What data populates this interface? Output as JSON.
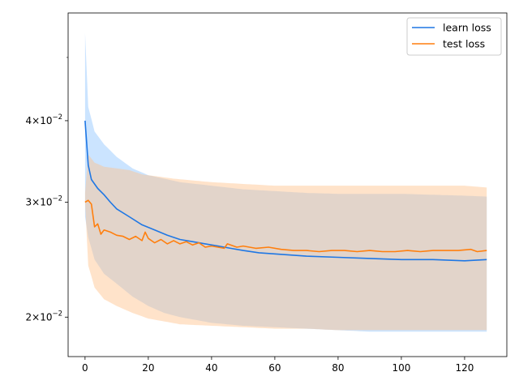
{
  "chart_data": {
    "type": "line",
    "title": "",
    "xlabel": "",
    "ylabel": "",
    "xlim": [
      -5.35,
      133.35
    ],
    "ylim": [
      0.0174,
      0.0585
    ],
    "yscale": "log",
    "grid": false,
    "legend_position": "top-right",
    "x_ticks": [
      0,
      20,
      40,
      60,
      80,
      100,
      120
    ],
    "x_tick_labels": [
      "0",
      "20",
      "40",
      "60",
      "80",
      "100",
      "120"
    ],
    "y_major_ticks": [
      0.02,
      0.03,
      0.04
    ],
    "y_major_tick_labels": [
      {
        "mantissa": "2",
        "base": "10",
        "exponent": "−2"
      },
      {
        "mantissa": "3",
        "base": "10",
        "exponent": "−2"
      },
      {
        "mantissa": "4",
        "base": "10",
        "exponent": "−2"
      }
    ],
    "y_minor_ticks": [
      0.05
    ],
    "series": [
      {
        "name": "learn loss",
        "color": "#1f77e4",
        "band_color": "#8cc4ff",
        "points": [
          [
            0,
            0.04
          ],
          [
            1,
            0.0342
          ],
          [
            2,
            0.0325
          ],
          [
            4,
            0.0315
          ],
          [
            6,
            0.0308
          ],
          [
            8,
            0.03
          ],
          [
            10,
            0.0293
          ],
          [
            14,
            0.0285
          ],
          [
            18,
            0.0277
          ],
          [
            22,
            0.0272
          ],
          [
            26,
            0.0267
          ],
          [
            30,
            0.0263
          ],
          [
            34,
            0.0261
          ],
          [
            38,
            0.0259
          ],
          [
            42,
            0.0257
          ],
          [
            46,
            0.0255
          ],
          [
            50,
            0.0253
          ],
          [
            55,
            0.0251
          ],
          [
            60,
            0.025
          ],
          [
            65,
            0.0249
          ],
          [
            70,
            0.0248
          ],
          [
            80,
            0.0247
          ],
          [
            90,
            0.0246
          ],
          [
            100,
            0.0245
          ],
          [
            110,
            0.0245
          ],
          [
            120,
            0.0244
          ],
          [
            127,
            0.0245
          ]
        ],
        "upper": [
          [
            0,
            0.0545
          ],
          [
            1,
            0.042
          ],
          [
            3,
            0.0385
          ],
          [
            6,
            0.0368
          ],
          [
            10,
            0.0352
          ],
          [
            15,
            0.0338
          ],
          [
            20,
            0.033
          ],
          [
            25,
            0.0326
          ],
          [
            30,
            0.0322
          ],
          [
            35,
            0.032
          ],
          [
            40,
            0.0318
          ],
          [
            50,
            0.0314
          ],
          [
            60,
            0.0312
          ],
          [
            70,
            0.031
          ],
          [
            80,
            0.0309
          ],
          [
            90,
            0.0309
          ],
          [
            100,
            0.0309
          ],
          [
            110,
            0.0308
          ],
          [
            120,
            0.0307
          ],
          [
            127,
            0.0306
          ]
        ],
        "lower": [
          [
            0,
            0.0285
          ],
          [
            1,
            0.0265
          ],
          [
            3,
            0.0245
          ],
          [
            6,
            0.0233
          ],
          [
            10,
            0.0225
          ],
          [
            15,
            0.0215
          ],
          [
            20,
            0.0208
          ],
          [
            25,
            0.0203
          ],
          [
            30,
            0.02
          ],
          [
            35,
            0.0198
          ],
          [
            40,
            0.0196
          ],
          [
            50,
            0.0194
          ],
          [
            60,
            0.0193
          ],
          [
            70,
            0.0192
          ],
          [
            80,
            0.0191
          ],
          [
            90,
            0.019
          ],
          [
            100,
            0.019
          ],
          [
            110,
            0.019
          ],
          [
            120,
            0.019
          ],
          [
            127,
            0.019
          ]
        ]
      },
      {
        "name": "test loss",
        "color": "#ff7f0e",
        "band_color": "#ffc08a",
        "points": [
          [
            0,
            0.03
          ],
          [
            1,
            0.0302
          ],
          [
            2,
            0.0298
          ],
          [
            3,
            0.0275
          ],
          [
            4,
            0.0278
          ],
          [
            5,
            0.0268
          ],
          [
            6,
            0.0272
          ],
          [
            8,
            0.027
          ],
          [
            10,
            0.0267
          ],
          [
            12,
            0.0266
          ],
          [
            14,
            0.0263
          ],
          [
            16,
            0.0266
          ],
          [
            18,
            0.0262
          ],
          [
            19,
            0.027
          ],
          [
            20,
            0.0264
          ],
          [
            22,
            0.026
          ],
          [
            24,
            0.0263
          ],
          [
            26,
            0.0259
          ],
          [
            28,
            0.0262
          ],
          [
            30,
            0.0259
          ],
          [
            32,
            0.0261
          ],
          [
            34,
            0.0258
          ],
          [
            36,
            0.026
          ],
          [
            38,
            0.0256
          ],
          [
            40,
            0.0257
          ],
          [
            44,
            0.0255
          ],
          [
            45,
            0.0259
          ],
          [
            48,
            0.0256
          ],
          [
            50,
            0.0257
          ],
          [
            54,
            0.0255
          ],
          [
            58,
            0.0256
          ],
          [
            62,
            0.0254
          ],
          [
            66,
            0.0253
          ],
          [
            70,
            0.0253
          ],
          [
            74,
            0.0252
          ],
          [
            78,
            0.0253
          ],
          [
            82,
            0.0253
          ],
          [
            86,
            0.0252
          ],
          [
            90,
            0.0253
          ],
          [
            94,
            0.0252
          ],
          [
            98,
            0.0252
          ],
          [
            102,
            0.0253
          ],
          [
            106,
            0.0252
          ],
          [
            110,
            0.0253
          ],
          [
            114,
            0.0253
          ],
          [
            118,
            0.0253
          ],
          [
            122,
            0.0254
          ],
          [
            124,
            0.0252
          ],
          [
            127,
            0.0253
          ]
        ],
        "upper": [
          [
            0,
            0.031
          ],
          [
            1,
            0.0355
          ],
          [
            3,
            0.0345
          ],
          [
            6,
            0.034
          ],
          [
            10,
            0.0338
          ],
          [
            14,
            0.0336
          ],
          [
            18,
            0.0331
          ],
          [
            22,
            0.0329
          ],
          [
            28,
            0.0326
          ],
          [
            34,
            0.0324
          ],
          [
            40,
            0.0322
          ],
          [
            50,
            0.032
          ],
          [
            60,
            0.0318
          ],
          [
            70,
            0.0318
          ],
          [
            80,
            0.0318
          ],
          [
            90,
            0.0318
          ],
          [
            100,
            0.0318
          ],
          [
            110,
            0.0318
          ],
          [
            120,
            0.0318
          ],
          [
            127,
            0.0316
          ]
        ],
        "lower": [
          [
            0,
            0.03
          ],
          [
            1,
            0.024
          ],
          [
            3,
            0.0222
          ],
          [
            6,
            0.0213
          ],
          [
            10,
            0.0208
          ],
          [
            15,
            0.0203
          ],
          [
            20,
            0.0199
          ],
          [
            25,
            0.0197
          ],
          [
            30,
            0.0195
          ],
          [
            40,
            0.0194
          ],
          [
            50,
            0.0193
          ],
          [
            60,
            0.0192
          ],
          [
            70,
            0.0192
          ],
          [
            80,
            0.0191
          ],
          [
            90,
            0.0191
          ],
          [
            100,
            0.0191
          ],
          [
            110,
            0.0191
          ],
          [
            120,
            0.0191
          ],
          [
            127,
            0.0191
          ]
        ]
      }
    ]
  }
}
